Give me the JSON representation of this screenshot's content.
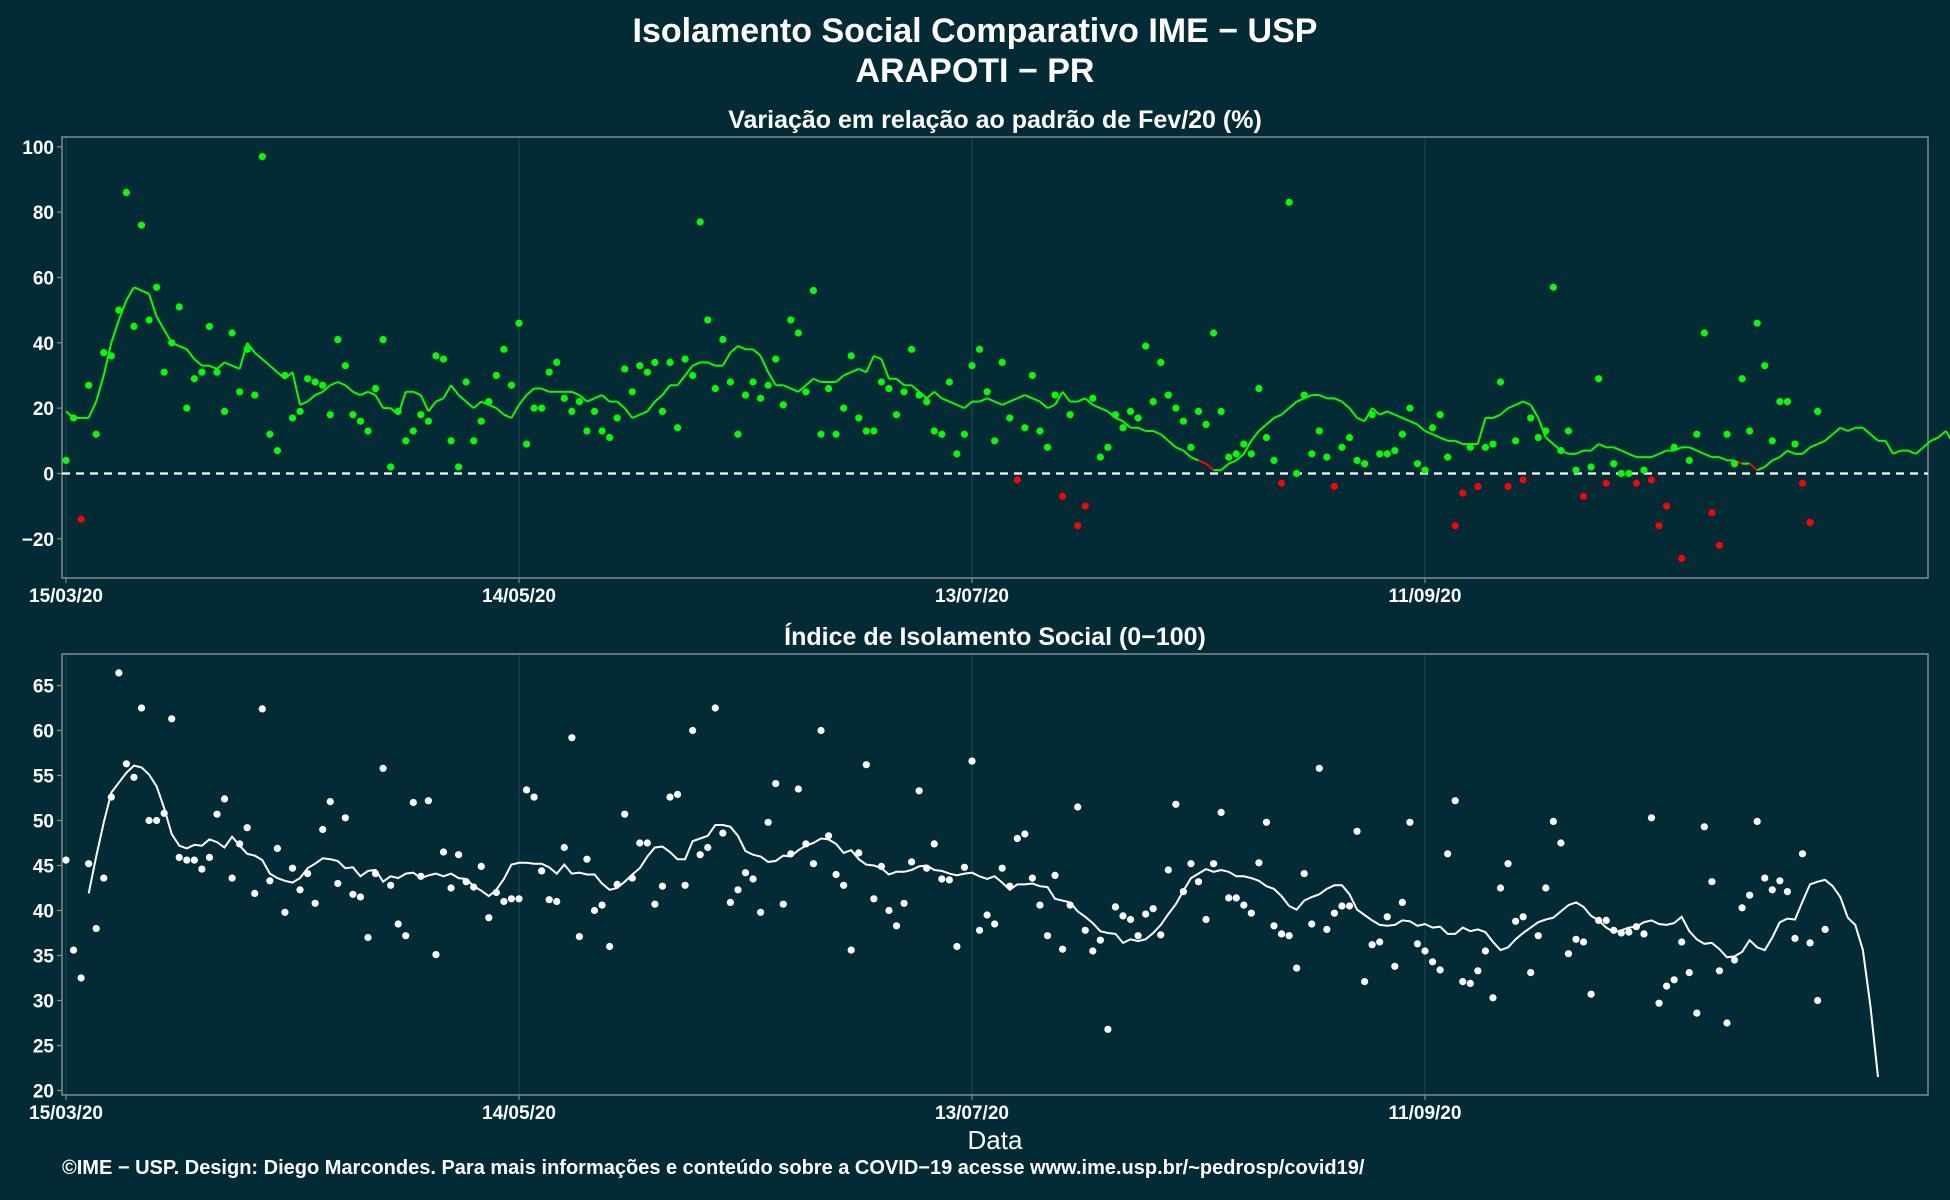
{
  "title": "Isolamento Social Comparativo IME − USP",
  "subtitle": "ARAPOTI − PR",
  "footer": "©IME − USP. Design: Diego Marcondes. Para mais informações e conteúdo sobre a COVID−19 acesse www.ime.usp.br/~pedrosp/covid19/",
  "colors": {
    "background": "#022b36",
    "positive": "#00ff00",
    "negative": "#ff0000",
    "index_points": "#ffffff",
    "frame": "#7f8c8d"
  },
  "chart_data": [
    {
      "type": "scatter",
      "title": "Variação em relação ao padrão de Fev/20 (%)",
      "xlabel": "",
      "ylabel": "",
      "x_tick_labels": [
        "15/03/20",
        "14/05/20",
        "13/07/20",
        "11/09/20"
      ],
      "y_tick_labels": [
        "100",
        "80",
        "60",
        "40",
        "20",
        "0",
        "−20"
      ],
      "ylim": [
        -32,
        103
      ],
      "reference_line": 0,
      "grid": true,
      "series": [
        {
          "values": [
            4,
            17,
            -14,
            27,
            12,
            37,
            36,
            50,
            86,
            45,
            76,
            47,
            57,
            31,
            40,
            51,
            20,
            29,
            31,
            45,
            31,
            19,
            43,
            25,
            38,
            24,
            97,
            12,
            7,
            30,
            17,
            19,
            29,
            28,
            27,
            18,
            41,
            33,
            18,
            16,
            13,
            26,
            41,
            2,
            19,
            10,
            13,
            18,
            16,
            36,
            35,
            10,
            2,
            28,
            10,
            16,
            22,
            30,
            38,
            27,
            46,
            9,
            20,
            20,
            31,
            34,
            23,
            19,
            22,
            13,
            19,
            13,
            11,
            17,
            32,
            25,
            33,
            31,
            34,
            19,
            34,
            14,
            35,
            30,
            77,
            47,
            26,
            41,
            28,
            12,
            24,
            28,
            23,
            27,
            35,
            21,
            47,
            43,
            25,
            56,
            12,
            26,
            12,
            20,
            36,
            17,
            13,
            13,
            28,
            26,
            18,
            25,
            38,
            24,
            22,
            13,
            12,
            28,
            6,
            12,
            33,
            38,
            25,
            10,
            34,
            17,
            -2,
            14,
            30,
            13,
            8,
            24,
            -7,
            18,
            -16,
            -10,
            23,
            5,
            8,
            18,
            14,
            19,
            17,
            39,
            22,
            34,
            24,
            20,
            16,
            8,
            19,
            15,
            43,
            19,
            5,
            6,
            9,
            6,
            26,
            11,
            4,
            -3,
            83,
            0,
            24,
            6,
            13,
            5,
            -4,
            8,
            11,
            4,
            3,
            18,
            6,
            6,
            7,
            12,
            20,
            3,
            1,
            14,
            18,
            5,
            -16,
            -6,
            8,
            -4,
            8,
            9,
            28,
            -4,
            10,
            -2,
            17,
            11,
            13,
            57,
            7,
            13,
            1,
            -7,
            2,
            29,
            -3,
            3,
            0,
            0,
            -3,
            1,
            -2,
            -16,
            -10,
            8,
            -26,
            4,
            12,
            43,
            -12,
            -22,
            12,
            3,
            29,
            13,
            46,
            33,
            10,
            22,
            22,
            9,
            -3,
            -15,
            19
          ]
        },
        {
          "values": [
            19,
            17,
            17,
            17,
            22,
            30,
            40,
            47,
            53,
            57,
            56,
            55,
            48,
            44,
            40,
            39,
            38,
            35,
            33,
            33,
            32,
            34,
            33,
            32,
            40,
            37,
            35,
            33,
            31,
            29,
            31,
            21,
            22,
            24,
            25,
            27,
            28,
            27,
            25,
            24,
            25,
            24,
            20,
            20,
            18,
            25,
            25,
            24,
            19,
            22,
            23,
            27,
            24,
            22,
            20,
            22,
            21,
            20,
            18,
            17,
            21,
            24,
            26,
            26,
            25,
            25,
            25,
            25,
            24,
            22,
            23,
            24,
            22,
            22,
            20,
            17,
            18,
            19,
            22,
            24,
            27,
            27,
            30,
            33,
            34,
            34,
            33,
            33,
            37,
            39,
            38,
            38,
            36,
            31,
            27,
            27,
            26,
            25,
            27,
            29,
            28,
            28,
            28,
            30,
            31,
            32,
            31,
            36,
            35,
            29,
            29,
            27,
            27,
            25,
            23,
            25,
            23,
            22,
            21,
            20,
            22,
            22,
            23,
            22,
            21,
            22,
            23,
            24,
            23,
            22,
            20,
            21,
            25,
            22,
            22,
            23,
            21,
            20,
            19,
            17,
            16,
            14,
            14,
            13,
            13,
            12,
            10,
            8,
            7,
            5,
            4,
            3,
            1,
            1,
            3,
            4,
            6,
            10,
            13,
            15,
            17,
            18,
            20,
            22,
            23,
            24,
            24,
            23,
            23,
            22,
            20,
            17,
            16,
            20,
            18,
            19,
            18,
            17,
            16,
            15,
            13,
            12,
            11,
            10,
            10,
            9,
            9,
            9,
            17,
            17,
            18,
            20,
            21,
            22,
            21,
            17,
            11,
            9,
            7,
            6,
            6,
            7,
            7,
            9,
            8,
            8,
            7,
            6,
            5,
            5,
            5,
            6,
            7,
            7,
            8,
            8,
            7,
            6,
            5,
            5,
            4,
            4,
            3,
            3,
            1,
            2,
            4,
            5,
            7,
            6,
            6,
            8,
            9,
            10,
            12,
            14,
            13,
            14,
            14,
            12,
            10,
            10,
            6,
            7,
            7,
            6,
            8,
            10,
            11,
            13,
            9,
            5,
            3,
            1,
            0,
            -4,
            -4,
            3,
            3,
            1,
            0,
            4,
            9,
            9,
            9,
            10,
            16,
            20,
            19,
            18,
            21,
            20,
            14,
            9,
            11
          ]
        }
      ]
    },
    {
      "type": "scatter",
      "title": "Índice de Isolamento Social (0−100)",
      "xlabel": "Data",
      "ylabel": "",
      "x_tick_labels": [
        "15/03/20",
        "14/05/20",
        "13/07/20",
        "11/09/20"
      ],
      "y_tick_labels": [
        "65",
        "60",
        "55",
        "50",
        "45",
        "40",
        "35",
        "30",
        "25",
        "20"
      ],
      "ylim": [
        19.5,
        68.5
      ],
      "grid": true,
      "series": [
        {
          "values": [
            45.6,
            35.6,
            32.5,
            45.2,
            38,
            43.6,
            52.6,
            66.4,
            56.3,
            54.8,
            62.5,
            50,
            50,
            50.8,
            61.3,
            45.9,
            45.6,
            45.6,
            44.6,
            45.9,
            50.7,
            52.4,
            43.6,
            47.4,
            49.2,
            41.9,
            62.4,
            43.3,
            46.9,
            39.8,
            44.7,
            42.3,
            44.1,
            40.8,
            49,
            52.1,
            43,
            50.3,
            41.8,
            41.5,
            37,
            44.1,
            55.8,
            42.8,
            38.5,
            37.2,
            52,
            43.8,
            52.2,
            35.1,
            46.5,
            42.5,
            46.2,
            43.2,
            42.6,
            44.9,
            39.2,
            42,
            41,
            41.3,
            41.3,
            53.4,
            52.6,
            44.4,
            41.2,
            41,
            47,
            59.2,
            37.1,
            45.7,
            40,
            40.6,
            36,
            42.9,
            50.7,
            43.6,
            47.5,
            47.5,
            40.7,
            42.7,
            52.6,
            52.9,
            42.8,
            60,
            46.2,
            47,
            62.5,
            48.6,
            40.9,
            42.3,
            44.2,
            43.5,
            39.8,
            49.8,
            54.1,
            40.7,
            46.3,
            53.5,
            47.4,
            45.2,
            60,
            48.3,
            44,
            42.8,
            35.6,
            46.4,
            56.2,
            41.3,
            44.9,
            40,
            38.3,
            40.8,
            45.4,
            53.3,
            44.7,
            47.4,
            43.5,
            43.4,
            36,
            44.8,
            56.6,
            37.8,
            39.5,
            38.5,
            44.7,
            42.7,
            48,
            48.5,
            43.6,
            40.6,
            37.2,
            43.9,
            35.7,
            40.6,
            51.5,
            37.8,
            35.5,
            36.7,
            26.8,
            40.4,
            39.4,
            39,
            37.2,
            39.6,
            40.2,
            37.3,
            44.5,
            51.8,
            42.1,
            45.2,
            43.2,
            39,
            45.2,
            50.9,
            41.4,
            41.4,
            40.6,
            39.7,
            45.3,
            49.8,
            38.3,
            37.4,
            37.2,
            33.6,
            44.1,
            38.5,
            55.8,
            37.9,
            39.7,
            40.5,
            40.5,
            48.8,
            32.1,
            36.2,
            36.5,
            39.3,
            33.8,
            40.9,
            49.8,
            36.3,
            35.5,
            34.3,
            33.4,
            46.3,
            52.2,
            32.1,
            31.9,
            33.3,
            35.5,
            30.3,
            42.5,
            45.2,
            38.8,
            39.3,
            33.1,
            37.2,
            42.5,
            49.9,
            47.5,
            35.2,
            36.8,
            36.5,
            30.7,
            38.9,
            38.9,
            37.8,
            37.5,
            37.6,
            38.2,
            37.4,
            50.3,
            29.7,
            31.6,
            32.3,
            36.5,
            33.1,
            28.6,
            49.3,
            43.2,
            33.3,
            27.5,
            34.5,
            40.3,
            41.7,
            49.9,
            43.6,
            42.3,
            43.3,
            42.1,
            36.9,
            46.3,
            36.4,
            30,
            37.9
          ]
        },
        {
          "values": [
            null,
            null,
            null,
            41.9,
            46,
            49.8,
            53.1,
            54.2,
            55.3,
            56.1,
            55.9,
            55.1,
            53.8,
            51.4,
            48.5,
            47.2,
            46.9,
            47.3,
            47.2,
            47.9,
            47.6,
            47,
            48.2,
            47.2,
            46.3,
            46.1,
            45.6,
            44.1,
            43.6,
            43.3,
            43.1,
            43.6,
            44.7,
            45.2,
            45.8,
            45.7,
            45.5,
            44.7,
            44.8,
            43.8,
            44.4,
            44.5,
            43.2,
            43.8,
            43.6,
            44.1,
            44.2,
            43.6,
            43.9,
            44.1,
            43.8,
            44.1,
            43.6,
            43.5,
            42.7,
            42.2,
            41.6,
            42.3,
            43.5,
            45.1,
            45.3,
            45.3,
            45.2,
            45.2,
            44.8,
            44.1,
            45.1,
            44.1,
            44.2,
            44,
            44,
            43,
            42.3,
            42.5,
            43.2,
            44,
            44.7,
            46,
            47,
            47.1,
            46.5,
            45.7,
            45.7,
            47.7,
            48,
            48.3,
            49.5,
            49.5,
            49.3,
            48.3,
            46.6,
            46.2,
            46,
            45.4,
            45.5,
            46.1,
            46,
            46.7,
            47.2,
            47.5,
            48,
            47.9,
            47.4,
            46.4,
            46.7,
            45.7,
            45.1,
            45,
            44.7,
            44,
            44.3,
            44.3,
            44.5,
            44.9,
            45,
            44.5,
            44.4,
            44.1,
            43.9,
            44.1,
            44.2,
            43.8,
            43.5,
            43.8,
            43.1,
            42.3,
            42.9,
            42.9,
            43,
            42.7,
            42.6,
            41.3,
            41.1,
            40.9,
            39.9,
            39.3,
            38.6,
            37.7,
            37.5,
            37.4,
            36.4,
            36.8,
            36.6,
            36.8,
            37.5,
            38.4,
            39.6,
            40.7,
            42.2,
            43.6,
            44.1,
            44.6,
            44.3,
            44.5,
            44.3,
            43.8,
            43.8,
            43.6,
            43.3,
            42.7,
            42.4,
            41.6,
            40.5,
            40.1,
            41.1,
            41.5,
            41.8,
            42.4,
            42.8,
            42.8,
            41.8,
            40.1,
            39.5,
            38.9,
            38.4,
            38.3,
            38.4,
            38.9,
            38.8,
            38.3,
            38.5,
            38.1,
            38.2,
            37.4,
            37.4,
            38.1,
            37.7,
            37.9,
            37.6,
            36.5,
            35.6,
            35.9,
            36.8,
            37.5,
            38.1,
            38.7,
            39,
            39.2,
            39.9,
            40.6,
            40.9,
            40.4,
            39.4,
            38.9,
            38.1,
            37.6,
            37.8,
            38.1,
            38.2,
            38.7,
            38.9,
            38.5,
            38.4,
            38.6,
            39.3,
            37.7,
            36.8,
            36.3,
            36.4,
            35.7,
            34.8,
            34.9,
            35.4,
            36.7,
            35.9,
            35.6,
            37,
            38.7,
            39.1,
            39,
            41,
            42.9,
            43.2,
            43.4,
            42.7,
            41.5,
            39.2,
            38.4,
            35.6,
            29.3,
            21.5
          ]
        }
      ]
    }
  ]
}
